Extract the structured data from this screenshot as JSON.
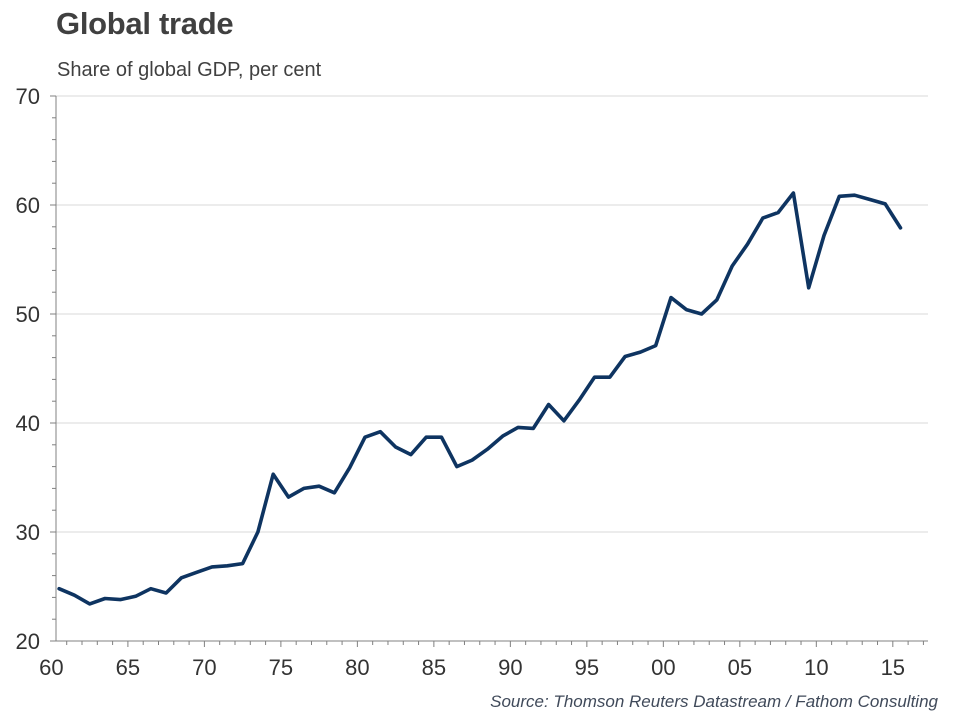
{
  "title": "Global trade",
  "subtitle": "Share of global GDP, per cent",
  "source": "Source: Thomson Reuters Datastream / Fathom Consulting",
  "colors": {
    "line": "#0e3461",
    "grid": "#d9d9d9",
    "axis": "#808080"
  },
  "chart_data": {
    "type": "line",
    "title": "Global trade",
    "subtitle": "Share of global GDP, per cent",
    "xlim": [
      1960,
      2017
    ],
    "ylim": [
      20,
      70
    ],
    "y_ticks": [
      20,
      30,
      40,
      50,
      60,
      70
    ],
    "x_ticks": [
      1960,
      1965,
      1970,
      1975,
      1980,
      1985,
      1990,
      1995,
      2000,
      2005,
      2010,
      2015
    ],
    "x_tick_labels": [
      "60",
      "65",
      "70",
      "75",
      "80",
      "85",
      "90",
      "95",
      "00",
      "05",
      "10",
      "15"
    ],
    "grid": "horizontal",
    "series": [
      {
        "x": [
          1960,
          1961,
          1962,
          1963,
          1964,
          1965,
          1966,
          1967,
          1968,
          1969,
          1970,
          1971,
          1972,
          1973,
          1974,
          1975,
          1976,
          1977,
          1978,
          1979,
          1980,
          1981,
          1982,
          1983,
          1984,
          1985,
          1986,
          1987,
          1988,
          1989,
          1990,
          1991,
          1992,
          1993,
          1994,
          1995,
          1996,
          1997,
          1998,
          1999,
          2000,
          2001,
          2002,
          2003,
          2004,
          2005,
          2006,
          2007,
          2008,
          2009,
          2010,
          2011,
          2012,
          2013,
          2014,
          2015
        ],
        "values": [
          24.8,
          24.2,
          23.4,
          23.9,
          23.8,
          24.1,
          24.8,
          24.4,
          25.8,
          26.3,
          26.8,
          26.9,
          27.1,
          30.0,
          35.3,
          33.2,
          34.0,
          34.2,
          33.6,
          35.9,
          38.7,
          39.2,
          37.8,
          37.1,
          38.7,
          38.7,
          36.0,
          36.6,
          37.6,
          38.8,
          39.6,
          39.5,
          41.7,
          40.2,
          42.1,
          44.2,
          44.2,
          46.1,
          46.5,
          47.1,
          51.5,
          50.4,
          50.0,
          51.3,
          54.4,
          56.4,
          58.8,
          59.3,
          61.1,
          52.4,
          57.2,
          60.8,
          60.9,
          60.5,
          60.1,
          57.9
        ]
      }
    ]
  }
}
